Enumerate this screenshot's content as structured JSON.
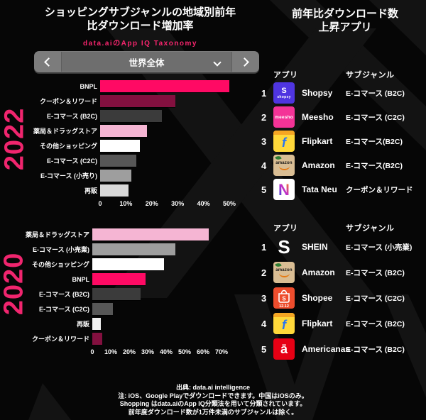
{
  "page": {
    "background": "#060606",
    "accent_pink": "#F8256E"
  },
  "header_left": {
    "title_line1": "ショッピングサブジャンルの地域別前年",
    "title_line2": "比ダウンロード増加率",
    "subtitle": "data.aiのApp IQ Taxonomy"
  },
  "header_right": {
    "title_line1": "前年比ダウンロード数",
    "title_line2": "上昇アプリ"
  },
  "selector": {
    "value": "世界全体"
  },
  "chart_data": [
    {
      "type": "bar",
      "orientation": "horizontal",
      "year_label": "2022",
      "unit": "%",
      "xlim": [
        0,
        50
      ],
      "tick_values": [
        0,
        10,
        20,
        30,
        40,
        50
      ],
      "tick_labels": [
        "0",
        "10%",
        "20%",
        "30%",
        "40%",
        "50%"
      ],
      "categories": [
        "BNPL",
        "クーポン＆リワード",
        "E-コマース (B2C)",
        "薬局＆ドラッグストア",
        "その他ショッピング",
        "E-コマース (C2C)",
        "E-コマース (小売り)",
        "再販"
      ],
      "values": [
        50,
        29,
        24,
        18,
        15.5,
        14,
        12,
        11
      ],
      "colors": [
        "#FF0A64",
        "#83103F",
        "#3B3B3B",
        "#F5B5D3",
        "#FFFFFF",
        "#575757",
        "#9E9E9E",
        "#D8D8D8"
      ]
    },
    {
      "type": "bar",
      "orientation": "horizontal",
      "year_label": "2020",
      "unit": "%",
      "xlim": [
        0,
        70
      ],
      "tick_values": [
        0,
        10,
        20,
        30,
        40,
        50,
        60,
        70
      ],
      "tick_labels": [
        "0",
        "10%",
        "20%",
        "30%",
        "40%",
        "50%",
        "60%",
        "70%"
      ],
      "categories": [
        "薬局＆ドラッグストア",
        "E-コマース (小売業)",
        "その他ショッピング",
        "BNPL",
        "E-コマース (B2C)",
        "E-コマース (C2C)",
        "再販",
        "クーポン＆リワード"
      ],
      "values": [
        63,
        45,
        39,
        29,
        26,
        11,
        4.5,
        5.5
      ],
      "colors": [
        "#F5B5D3",
        "#9E9E9E",
        "#FFFFFF",
        "#FF0A64",
        "#3B3B3B",
        "#575757",
        "#F0F0F0",
        "#83103F"
      ]
    }
  ],
  "rankings": {
    "col_app": "アプリ",
    "col_subgenre": "サブジャンル",
    "table1": {
      "rows": [
        {
          "rank": "1",
          "app": "Shopsy",
          "subgenre": "E-コマース (B2C)",
          "icon_line1": "S",
          "icon_line2": "shopsy"
        },
        {
          "rank": "2",
          "app": "Meesho",
          "subgenre": "E-コマース (C2C)",
          "icon_line1": "meesho"
        },
        {
          "rank": "3",
          "app": "Flipkart",
          "subgenre": "E-コマース(B2C)",
          "icon_line1": "f"
        },
        {
          "rank": "4",
          "app": "Amazon",
          "subgenre": "E-コマース(B2C)",
          "icon_line1": "amazon"
        },
        {
          "rank": "5",
          "app": "Tata Neu",
          "subgenre": "クーポン＆リワード",
          "icon_line1": "N"
        }
      ]
    },
    "table2": {
      "rows": [
        {
          "rank": "1",
          "app": "SHEIN",
          "subgenre": "E-コマース (小売業)",
          "icon_line1": "S"
        },
        {
          "rank": "2",
          "app": "Amazon",
          "subgenre": "E-コマース (B2C)",
          "icon_line1": "amazon"
        },
        {
          "rank": "3",
          "app": "Shopee",
          "subgenre": "E-コマース (C2C)",
          "icon_line1": "S",
          "icon_line2": "12.12"
        },
        {
          "rank": "4",
          "app": "Flipkart",
          "subgenre": "E-コマース (B2C)",
          "icon_line1": "f"
        },
        {
          "rank": "5",
          "app": "Americanas",
          "subgenre": "E-コマース (B2C)",
          "icon_line1": "ā"
        }
      ]
    }
  },
  "footer": {
    "source": "出典: data.ai intelligence",
    "note1": "注: iOS、Google Playでダウンロードできます。中国はiOSのみ。",
    "note2": "Shopping はdata.aiのApp IQ分類法を用いて分類されています。",
    "note3": "前年度ダウンロード数が1万件未満のサブジャンルは除く。"
  }
}
